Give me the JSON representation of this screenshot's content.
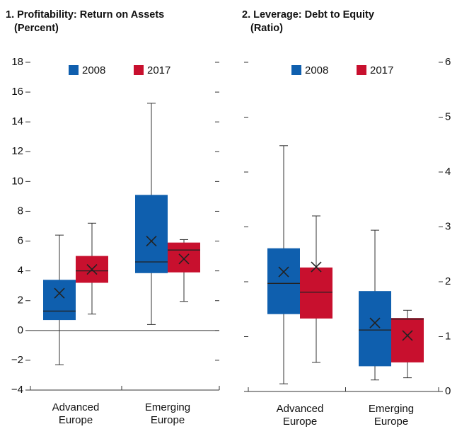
{
  "chart_data": [
    {
      "type": "box",
      "title": "1. Profitability: Return on Assets",
      "subtitle": "(Percent)",
      "categories": [
        "Advanced Europe",
        "Emerging Europe"
      ],
      "series": [
        {
          "name": "2008",
          "color": "#0f5fae",
          "low": [
            -2.3,
            0.4
          ],
          "q1": [
            0.7,
            3.85
          ],
          "median": [
            1.3,
            4.6
          ],
          "q3": [
            3.4,
            9.1
          ],
          "high": [
            6.4,
            15.25
          ],
          "mean": [
            2.5,
            6.0
          ]
        },
        {
          "name": "2017",
          "color": "#c8102e",
          "low": [
            1.1,
            1.95
          ],
          "q1": [
            3.2,
            3.9
          ],
          "median": [
            4.0,
            5.4
          ],
          "q3": [
            5.0,
            5.9
          ],
          "high": [
            7.2,
            6.1
          ],
          "mean": [
            4.1,
            4.8
          ]
        }
      ],
      "ylim": [
        -4,
        18
      ],
      "yticks": [
        {
          "value": -4,
          "label": "−4"
        },
        {
          "value": -2,
          "label": "−2"
        },
        0,
        2,
        4,
        6,
        8,
        10,
        12,
        14,
        16,
        18
      ],
      "y_axis_side": "left",
      "zero_line": true,
      "legend": "top"
    },
    {
      "type": "box",
      "title": "2. Leverage: Debt to Equity",
      "subtitle": "(Ratio)",
      "categories": [
        "Advanced Europe",
        "Emerging Europe"
      ],
      "series": [
        {
          "name": "2008",
          "color": "#0f5fae",
          "low": [
            0.14,
            0.21
          ],
          "q1": [
            1.41,
            0.46
          ],
          "median": [
            1.97,
            1.12
          ],
          "q3": [
            2.61,
            1.83
          ],
          "high": [
            4.48,
            2.94
          ],
          "mean": [
            2.18,
            1.25
          ]
        },
        {
          "name": "2017",
          "color": "#c8102e",
          "low": [
            0.53,
            0.25
          ],
          "q1": [
            1.33,
            0.53
          ],
          "median": [
            1.81,
            1.32
          ],
          "q3": [
            2.26,
            1.34
          ],
          "high": [
            3.2,
            1.48
          ],
          "mean": [
            2.27,
            1.02
          ]
        }
      ],
      "ylim": [
        0,
        6
      ],
      "yticks": [
        0,
        1,
        2,
        3,
        4,
        5,
        6
      ],
      "y_axis_side": "right",
      "zero_line": false,
      "legend": "top"
    }
  ]
}
